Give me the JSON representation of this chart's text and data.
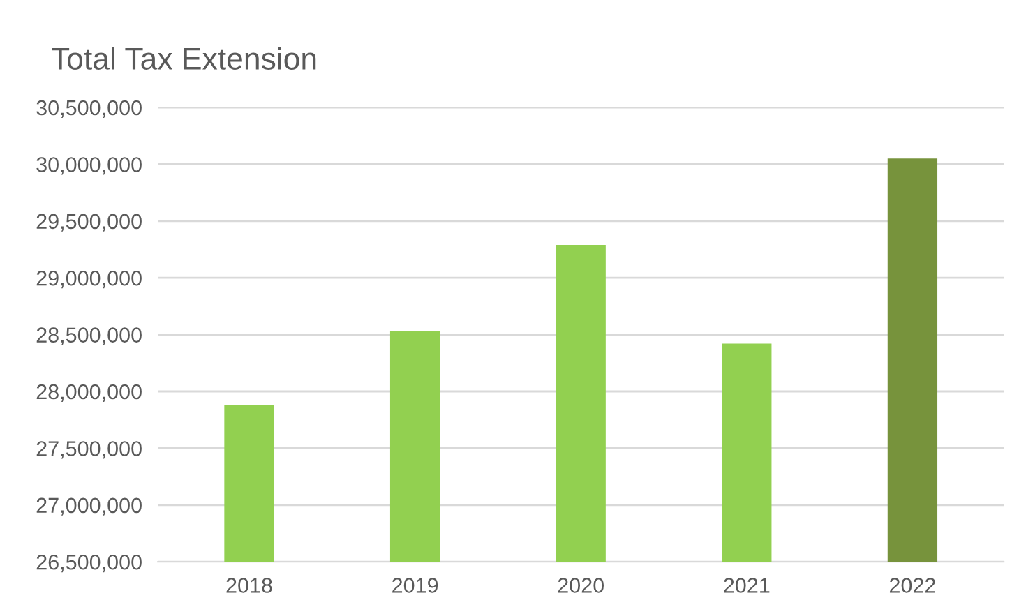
{
  "chart_data": {
    "type": "bar",
    "title": "Total Tax Extension",
    "categories": [
      "2018",
      "2019",
      "2020",
      "2021",
      "2022"
    ],
    "values": [
      27880000,
      28530000,
      29290000,
      28420000,
      30050000
    ],
    "colors": [
      "#92d050",
      "#92d050",
      "#92d050",
      "#92d050",
      "#77933c"
    ],
    "ylim": [
      26500000,
      30500000
    ],
    "yticks": [
      {
        "value": 26500000,
        "label": "26,500,000"
      },
      {
        "value": 27000000,
        "label": "27,000,000"
      },
      {
        "value": 27500000,
        "label": "27,500,000"
      },
      {
        "value": 28000000,
        "label": "28,000,000"
      },
      {
        "value": 28500000,
        "label": "28,500,000"
      },
      {
        "value": 29000000,
        "label": "29,000,000"
      },
      {
        "value": 29500000,
        "label": "29,500,000"
      },
      {
        "value": 30000000,
        "label": "30,000,000"
      },
      {
        "value": 30500000,
        "label": "30,500,000"
      }
    ],
    "grid": "y"
  }
}
